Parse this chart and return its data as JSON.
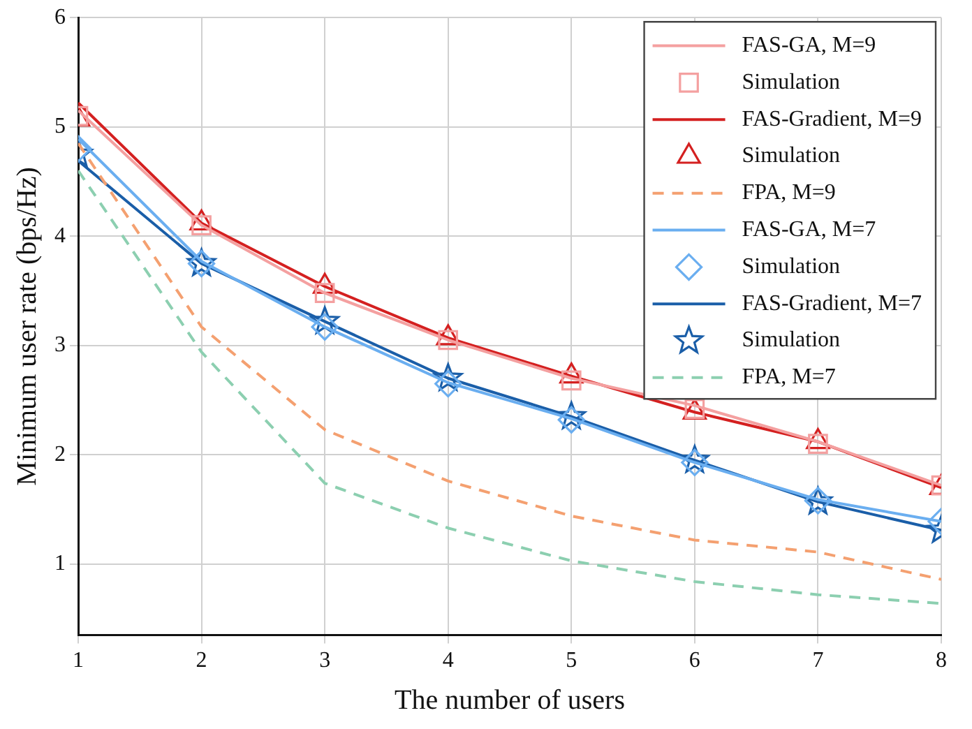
{
  "chart_data": {
    "type": "line",
    "xlabel": "The number of users",
    "ylabel": "Minimum user rate (bps/Hz)",
    "x": [
      1,
      2,
      3,
      4,
      5,
      6,
      7,
      8
    ],
    "xlim": [
      1,
      8
    ],
    "xticks": [
      1,
      2,
      3,
      4,
      5,
      6,
      7,
      8
    ],
    "ylim": [
      0.35,
      6
    ],
    "yticks": [
      1,
      2,
      3,
      4,
      5,
      6
    ],
    "grid": true,
    "legend": "top right",
    "series": [
      {
        "name": "FAS-GA, M=9",
        "marker": "none",
        "line_style": "solid",
        "color": "#f4a0a0",
        "values": [
          5.15,
          4.1,
          3.48,
          3.05,
          2.7,
          2.45,
          2.12,
          1.72
        ]
      },
      {
        "name": "Simulation",
        "type": "scatter",
        "marker": "square",
        "color": "#f4a0a0",
        "values": [
          5.1,
          4.1,
          3.48,
          3.05,
          2.68,
          2.42,
          2.1,
          1.72
        ]
      },
      {
        "name": "FAS-Gradient, M=9",
        "marker": "none",
        "line_style": "solid",
        "color": "#d42020",
        "values": [
          5.22,
          4.12,
          3.54,
          3.07,
          2.72,
          2.39,
          2.12,
          1.7
        ]
      },
      {
        "name": "Simulation",
        "type": "scatter",
        "marker": "triangle",
        "color": "#d42020",
        "values": [
          5.07,
          4.12,
          3.54,
          3.07,
          2.72,
          2.39,
          2.12,
          1.7
        ]
      },
      {
        "name": "FPA, M=9",
        "marker": "none",
        "line_style": "dashed",
        "color": "#f4a070",
        "values": [
          4.85,
          3.17,
          2.23,
          1.76,
          1.44,
          1.22,
          1.11,
          0.86
        ]
      },
      {
        "name": "FAS-GA, M=7",
        "marker": "none",
        "line_style": "solid",
        "color": "#6aaef0",
        "values": [
          4.89,
          3.77,
          3.17,
          2.66,
          2.33,
          1.93,
          1.59,
          1.39
        ]
      },
      {
        "name": "Simulation",
        "type": "scatter",
        "marker": "diamond",
        "color": "#6aaef0",
        "values": [
          4.8,
          3.75,
          3.17,
          2.65,
          2.32,
          1.93,
          1.58,
          1.39
        ]
      },
      {
        "name": "FAS-Gradient, M=7",
        "marker": "none",
        "line_style": "solid",
        "color": "#1a5ea8",
        "values": [
          4.69,
          3.75,
          3.22,
          2.7,
          2.35,
          1.95,
          1.57,
          1.31
        ]
      },
      {
        "name": "Simulation",
        "type": "scatter",
        "marker": "star",
        "color": "#1a5ea8",
        "values": [
          4.75,
          3.75,
          3.22,
          2.7,
          2.35,
          1.95,
          1.57,
          1.31
        ]
      },
      {
        "name": "FPA, M=7",
        "marker": "none",
        "line_style": "dashed",
        "color": "#8ccfb0",
        "values": [
          4.6,
          2.94,
          1.74,
          1.33,
          1.03,
          0.84,
          0.72,
          0.64
        ]
      }
    ]
  }
}
